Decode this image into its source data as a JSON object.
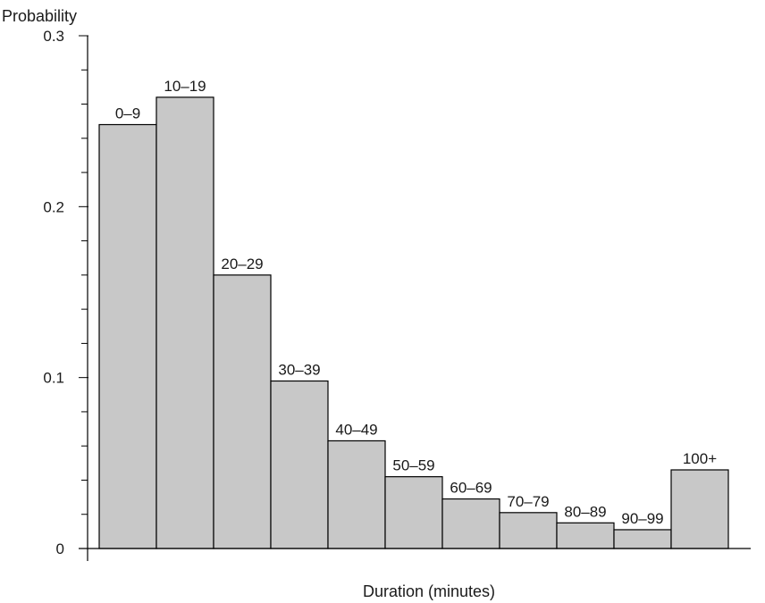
{
  "chart_data": {
    "type": "bar",
    "title": "",
    "ylabel": "Probability",
    "xlabel": "Duration (minutes)",
    "ylim": [
      0,
      0.3
    ],
    "yticks": [
      0,
      0.1,
      0.2,
      0.3
    ],
    "ytick_labels": [
      "0",
      "0.1",
      "0.2",
      "0.3"
    ],
    "minor_ticks_per_major": 5,
    "grid": false,
    "categories": [
      "0–9",
      "10–19",
      "20–29",
      "30–39",
      "40–49",
      "50–59",
      "60–69",
      "70–79",
      "80–89",
      "90–99",
      "100+"
    ],
    "values": [
      0.248,
      0.264,
      0.16,
      0.098,
      0.063,
      0.042,
      0.029,
      0.021,
      0.015,
      0.011,
      0.046
    ],
    "colors": {
      "bar_fill": "#c8c8c8",
      "bar_stroke": "#000000",
      "text": "#1a1a1a"
    }
  }
}
